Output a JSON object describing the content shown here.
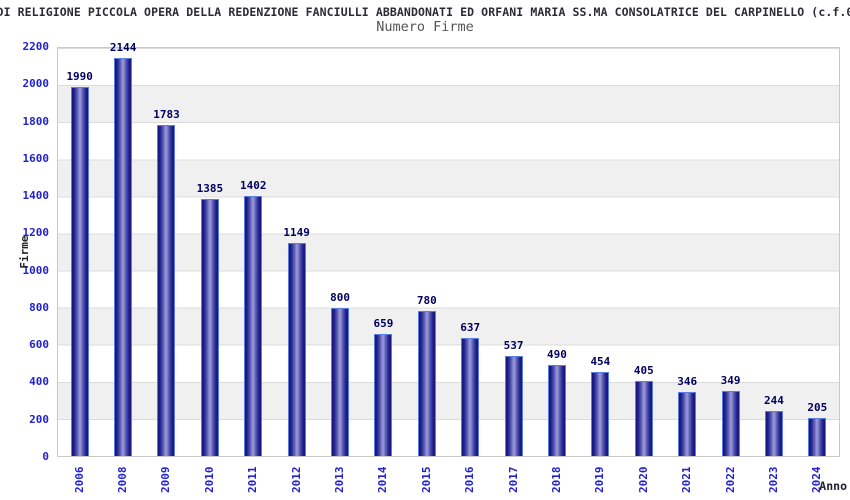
{
  "header": {
    "title": "DI RELIGIONE PICCOLA OPERA DELLA REDENZIONE FANCIULLI ABBANDONATI ED ORFANI MARIA SS.MA CONSOLATRICE DEL CARPINELLO (c.f.0",
    "subtitle": "Numero Firme"
  },
  "chart_data": {
    "type": "bar",
    "title": "Numero Firme",
    "categories": [
      "2006",
      "2008",
      "2009",
      "2010",
      "2011",
      "2012",
      "2013",
      "2014",
      "2015",
      "2016",
      "2017",
      "2018",
      "2019",
      "2020",
      "2021",
      "2022",
      "2023",
      "2024"
    ],
    "values": [
      1990,
      2144,
      1783,
      1385,
      1402,
      1149,
      800,
      659,
      780,
      637,
      537,
      490,
      454,
      405,
      346,
      349,
      244,
      205
    ],
    "xlabel": "Anno",
    "ylabel": "Firme",
    "ylim": [
      0,
      2200
    ],
    "yticks": [
      0,
      200,
      400,
      600,
      800,
      1000,
      1200,
      1400,
      1600,
      1800,
      2000,
      2200
    ],
    "grid": "horizontal lines every 200 with alternating white/gray bands",
    "legend": "none",
    "value_labels": "above each bar"
  },
  "colors": {
    "bar_dark": "#14147a",
    "bar_mid": "#9e9ed8",
    "bar_border": "#5b7fe0",
    "axis_tick_label": "#2222cc",
    "value_label": "#000060",
    "band_gray": "#f0f0f0",
    "gridline": "#dcdcdc",
    "plot_border": "#c9c9c9",
    "title_color": "#2b2b33",
    "subtitle_color": "#565656"
  }
}
